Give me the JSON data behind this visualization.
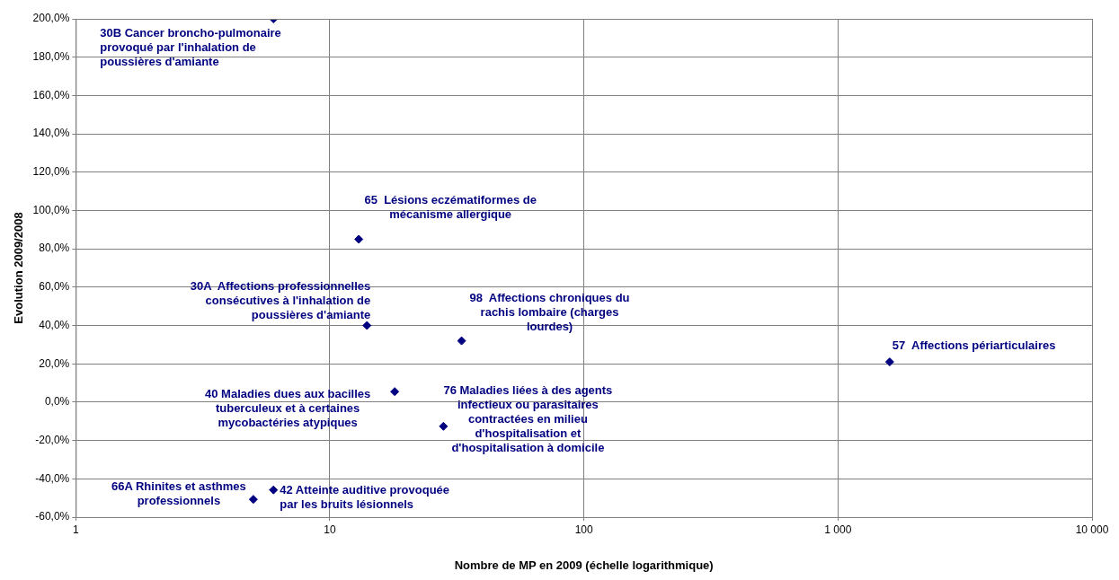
{
  "chart_data": {
    "type": "scatter",
    "xlabel": "Nombre de MP en 2009 (échelle logarithmique)",
    "ylabel": "Evolution 2009/2008",
    "log": "x",
    "grid": true,
    "legend": false,
    "marker": "diamond",
    "series": [
      {
        "color": "#000080",
        "x": [
          6,
          13,
          14,
          33,
          1598,
          18,
          28,
          5,
          6
        ],
        "values": [
          200,
          85,
          40,
          32,
          21,
          5.5,
          -12.6,
          -50.7,
          -45.8
        ]
      }
    ],
    "xlim": [
      1,
      10000
    ],
    "xticks": [
      1,
      10,
      100,
      {
        "value": 1000,
        "label": "1 000"
      },
      {
        "value": 10000,
        "label": "10 000"
      }
    ],
    "ylim": [
      -60,
      200
    ],
    "yticks": [
      {
        "value": -60,
        "label": "-60,0%"
      },
      {
        "value": -40,
        "label": "-40,0%"
      },
      {
        "value": -20,
        "label": "-20,0%"
      },
      {
        "value": 0,
        "label": "0,0%"
      },
      {
        "value": 20,
        "label": "20,0%"
      },
      {
        "value": 40,
        "label": "40,0%"
      },
      {
        "value": 60,
        "label": "60,0%"
      },
      {
        "value": 80,
        "label": "80,0%"
      },
      {
        "value": 100,
        "label": "100,0%"
      },
      {
        "value": 120,
        "label": "120,0%"
      },
      {
        "value": 140,
        "label": "140,0%"
      },
      {
        "value": 160,
        "label": "160,0%"
      },
      {
        "value": 180,
        "label": "180,0%"
      },
      {
        "value": 200,
        "label": "200,0%"
      }
    ],
    "annotations": [
      {
        "text": "30B Cancer broncho-pulmonaire\nprovoqué par l'inhalation de\npoussières d'amiante",
        "x": 6,
        "y": 200
      },
      {
        "text": "65  Lésions eczématiformes de\nmécanisme allergique",
        "x": 13,
        "y": 85
      },
      {
        "text": "30A  Affections professionnelles\nconsécutives à l'inhalation de\npoussières d'amiante",
        "x": 14,
        "y": 40
      },
      {
        "text": "98  Affections chroniques du\nrachis lombaire (charges\nlourdes)",
        "x": 33,
        "y": 32
      },
      {
        "text": "57  Affections périarticulaires",
        "x": 1598,
        "y": 21
      },
      {
        "text": "40 Maladies dues aux bacilles\ntuberculeux et à certaines\nmycobactéries atypiques",
        "x": 18,
        "y": 5.5
      },
      {
        "text": "76 Maladies liées à des agents\ninfectieux ou parasitaires\ncontractées en milieu\nd'hospitalisation et\nd'hospitalisation à domicile",
        "x": 28,
        "y": -12.6
      },
      {
        "text": "66A Rhinites et asthmes\nprofessionnels",
        "x": 5,
        "y": -50.7
      },
      {
        "text": "42 Atteinte auditive provoquée\npar les bruits lésionnels",
        "x": 6,
        "y": -45.8
      }
    ]
  }
}
